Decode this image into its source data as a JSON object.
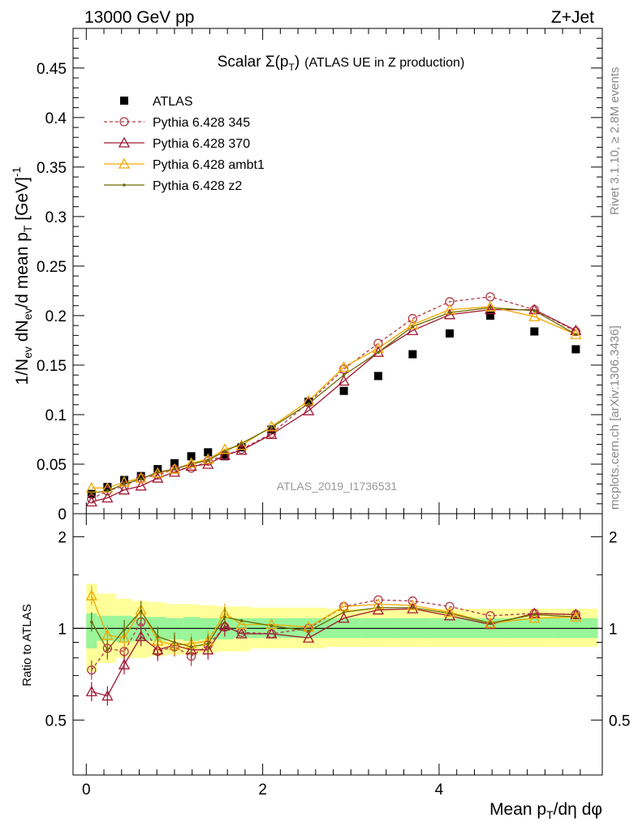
{
  "header": {
    "left": "13000 GeV pp",
    "right": "Z+Jet"
  },
  "side_labels": {
    "top": "Rivet 3.1.10, ≥ 2.8M events",
    "bottom": "mcplots.cern.ch [arXiv:1306.3436]"
  },
  "analysis_id": "ATLAS_2019_I1736531",
  "chart_data": [
    {
      "type": "line",
      "panel": "main",
      "title": "Scalar Σ(pT) (ATLAS UE in Z production)",
      "xlabel": "Mean pT/dη dφ",
      "ylabel": "1/Nev dNev/d mean pT [GeV]^-1",
      "xlim": [
        -0.15,
        5.85
      ],
      "ylim": [
        0,
        0.49
      ],
      "y_ticks": [
        "0",
        "0.05",
        "0.1",
        "0.15",
        "0.2",
        "0.25",
        "0.3",
        "0.35",
        "0.4",
        "0.45"
      ],
      "x": [
        0.06,
        0.24,
        0.43,
        0.62,
        0.81,
        1.0,
        1.19,
        1.38,
        1.57,
        1.76,
        2.1,
        2.52,
        2.92,
        3.31,
        3.7,
        4.12,
        4.58,
        5.08,
        5.55
      ],
      "series": [
        {
          "name": "ATLAS",
          "color": "#000000",
          "marker": "square",
          "values": [
            0.02,
            0.027,
            0.034,
            0.038,
            0.045,
            0.051,
            0.058,
            0.062,
            0.058,
            0.067,
            0.085,
            0.113,
            0.124,
            0.139,
            0.161,
            0.182,
            0.2,
            0.184,
            0.166
          ]
        },
        {
          "name": "Pythia 6.428 345",
          "color": "#b03a48",
          "marker": "open-circle",
          "dashed": true,
          "values": [
            0.015,
            0.023,
            0.028,
            0.036,
            0.039,
            0.045,
            0.046,
            0.053,
            0.059,
            0.065,
            0.081,
            0.112,
            0.146,
            0.172,
            0.197,
            0.214,
            0.219,
            0.206,
            0.184
          ]
        },
        {
          "name": "Pythia 6.428 370",
          "color": "#a01830",
          "marker": "open-triangle",
          "values": [
            0.012,
            0.016,
            0.024,
            0.028,
            0.036,
            0.042,
            0.048,
            0.05,
            0.059,
            0.064,
            0.08,
            0.104,
            0.134,
            0.163,
            0.185,
            0.201,
            0.206,
            0.206,
            0.185
          ]
        },
        {
          "name": "Pythia 6.428 ambt1",
          "color": "#f0a800",
          "marker": "open-triangle",
          "values": [
            0.026,
            0.026,
            0.032,
            0.036,
            0.041,
            0.045,
            0.051,
            0.055,
            0.065,
            0.069,
            0.088,
            0.114,
            0.148,
            0.167,
            0.191,
            0.206,
            0.209,
            0.199,
            0.181
          ]
        },
        {
          "name": "Pythia 6.428 z2",
          "color": "#6b6b00",
          "marker": "dot",
          "values": [
            0.021,
            0.023,
            0.03,
            0.035,
            0.042,
            0.045,
            0.05,
            0.054,
            0.063,
            0.071,
            0.087,
            0.111,
            0.14,
            0.163,
            0.189,
            0.203,
            0.208,
            0.205,
            0.181
          ]
        }
      ]
    },
    {
      "type": "line",
      "panel": "ratio",
      "ylabel": "Ratio to ATLAS",
      "xlabel": "Mean pT/dη dφ",
      "xlim": [
        -0.15,
        5.85
      ],
      "ylim": [
        0.33,
        2.38
      ],
      "y_ticks": [
        "0.5",
        "1",
        "2"
      ],
      "x_ticks": [
        "0",
        "2",
        "4"
      ],
      "x_edges": [
        0.0,
        0.12,
        0.34,
        0.52,
        0.71,
        0.91,
        1.1,
        1.29,
        1.48,
        1.67,
        1.86,
        2.34,
        2.72,
        3.12,
        3.5,
        3.9,
        4.35,
        4.8,
        5.3,
        5.8
      ],
      "band_green": [
        [
          0.86,
          1.12
        ],
        [
          0.91,
          1.1
        ],
        [
          0.9,
          1.1
        ],
        [
          0.91,
          1.09
        ],
        [
          0.91,
          1.09
        ],
        [
          0.92,
          1.08
        ],
        [
          0.91,
          1.09
        ],
        [
          0.92,
          1.08
        ],
        [
          0.92,
          1.08
        ],
        [
          0.93,
          1.08
        ],
        [
          0.93,
          1.08
        ],
        [
          0.93,
          1.08
        ],
        [
          0.93,
          1.08
        ],
        [
          0.93,
          1.08
        ],
        [
          0.93,
          1.08
        ],
        [
          0.93,
          1.08
        ],
        [
          0.93,
          1.08
        ],
        [
          0.93,
          1.08
        ],
        [
          0.93,
          1.08
        ]
      ],
      "band_yellow": [
        [
          0.72,
          1.4
        ],
        [
          0.77,
          1.3
        ],
        [
          0.8,
          1.25
        ],
        [
          0.8,
          1.23
        ],
        [
          0.81,
          1.22
        ],
        [
          0.82,
          1.2
        ],
        [
          0.82,
          1.2
        ],
        [
          0.83,
          1.19
        ],
        [
          0.84,
          1.18
        ],
        [
          0.84,
          1.18
        ],
        [
          0.86,
          1.17
        ],
        [
          0.86,
          1.17
        ],
        [
          0.87,
          1.16
        ],
        [
          0.87,
          1.16
        ],
        [
          0.87,
          1.16
        ],
        [
          0.87,
          1.16
        ],
        [
          0.87,
          1.16
        ],
        [
          0.87,
          1.16
        ],
        [
          0.87,
          1.16
        ]
      ],
      "series": [
        {
          "name": "Pythia 6.428 345",
          "values": [
            0.73,
            0.86,
            0.84,
            1.05,
            0.84,
            0.87,
            0.81,
            0.88,
            1.01,
            0.97,
            0.96,
            1.0,
            1.18,
            1.24,
            1.23,
            1.18,
            1.1,
            1.12,
            1.11
          ]
        },
        {
          "name": "Pythia 6.428 370",
          "values": [
            0.62,
            0.6,
            0.76,
            0.94,
            0.85,
            0.88,
            0.85,
            0.85,
            1.02,
            0.96,
            0.96,
            0.93,
            1.08,
            1.15,
            1.16,
            1.1,
            1.03,
            1.12,
            1.11
          ]
        },
        {
          "name": "Pythia 6.428 ambt1",
          "values": [
            1.28,
            0.95,
            0.93,
            1.15,
            0.91,
            0.88,
            0.89,
            0.91,
            1.12,
            1.03,
            1.03,
            1.01,
            1.18,
            1.2,
            1.19,
            1.13,
            1.04,
            1.08,
            1.09
          ]
        },
        {
          "name": "Pythia 6.428 z2",
          "values": [
            1.05,
            0.85,
            0.99,
            1.14,
            0.94,
            0.9,
            0.87,
            0.89,
            1.09,
            1.06,
            1.02,
            0.98,
            1.13,
            1.17,
            1.17,
            1.12,
            1.04,
            1.11,
            1.09
          ]
        }
      ]
    }
  ]
}
